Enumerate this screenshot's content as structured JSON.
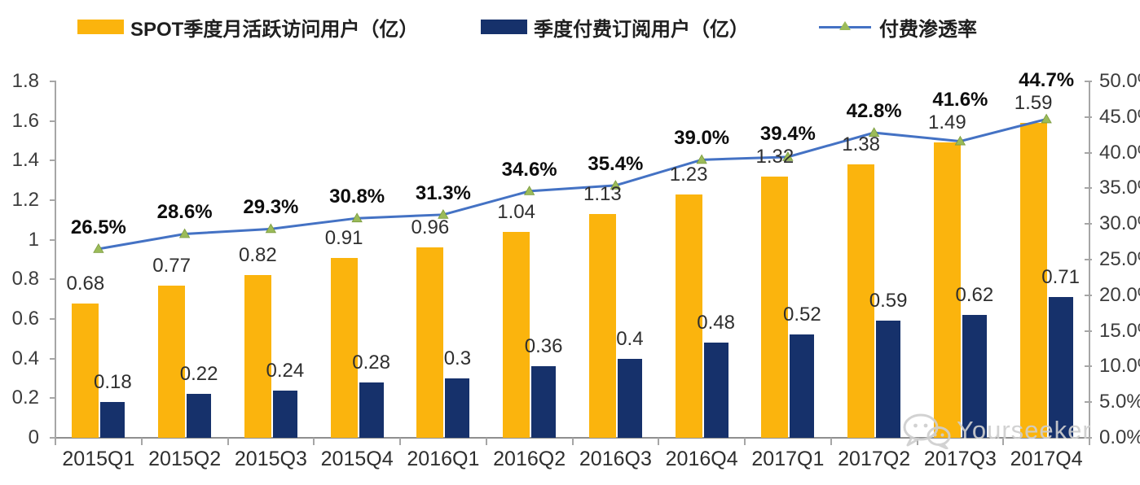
{
  "chart_data": {
    "type": "bar+line",
    "categories": [
      "2015Q1",
      "2015Q2",
      "2015Q3",
      "2015Q4",
      "2016Q1",
      "2016Q2",
      "2016Q3",
      "2016Q4",
      "2017Q1",
      "2017Q2",
      "2017Q3",
      "2017Q4"
    ],
    "series": [
      {
        "name": "SPOT季度月活跃访问用户（亿）",
        "type": "bar",
        "axis": "left",
        "color": "#FBB40D",
        "values": [
          0.68,
          0.77,
          0.82,
          0.91,
          0.96,
          1.04,
          1.13,
          1.23,
          1.32,
          1.38,
          1.49,
          1.59
        ],
        "labels": [
          "0.68",
          "0.77",
          "0.82",
          "0.91",
          "0.96",
          "1.04",
          "1.13",
          "1.23",
          "1.32",
          "1.38",
          "1.49",
          "1.59"
        ]
      },
      {
        "name": "季度付费订阅用户（亿）",
        "type": "bar",
        "axis": "left",
        "color": "#16316B",
        "values": [
          0.18,
          0.22,
          0.24,
          0.28,
          0.3,
          0.36,
          0.4,
          0.48,
          0.52,
          0.59,
          0.62,
          0.71
        ],
        "labels": [
          "0.18",
          "0.22",
          "0.24",
          "0.28",
          "0.3",
          "0.36",
          "0.4",
          "0.48",
          "0.52",
          "0.59",
          "0.62",
          "0.71"
        ]
      },
      {
        "name": "付费渗透率",
        "type": "line",
        "axis": "right",
        "color": "#4472C4",
        "marker_color": "#9BBB59",
        "values": [
          26.5,
          28.6,
          29.3,
          30.8,
          31.3,
          34.6,
          35.4,
          39.0,
          39.4,
          42.8,
          41.6,
          44.7
        ],
        "labels": [
          "26.5%",
          "28.6%",
          "29.3%",
          "30.8%",
          "31.3%",
          "34.6%",
          "35.4%",
          "39.0%",
          "39.4%",
          "42.8%",
          "41.6%",
          "44.7%"
        ]
      }
    ],
    "left_axis": {
      "min": 0,
      "max": 1.8,
      "ticks": [
        "0",
        "0.2",
        "0.4",
        "0.6",
        "0.8",
        "1",
        "1.2",
        "1.4",
        "1.6",
        "1.8"
      ]
    },
    "right_axis": {
      "min": 0,
      "max": 50,
      "ticks": [
        "0.0%",
        "5.0%",
        "10.0%",
        "15.0%",
        "20.0%",
        "25.0%",
        "30.0%",
        "35.0%",
        "40.0%",
        "45.0%",
        "50.0%"
      ]
    },
    "grid": false,
    "legend_position": "top"
  },
  "watermark": {
    "text": "Yourseeker",
    "icon": "wechat-icon"
  },
  "colors": {
    "bar_mau": "#FBB40D",
    "bar_subscribers": "#16316B",
    "line_penetration": "#4472C4",
    "line_marker": "#9BBB59",
    "axis": "#A6A6A6",
    "watermark": "#CFCFCF"
  }
}
